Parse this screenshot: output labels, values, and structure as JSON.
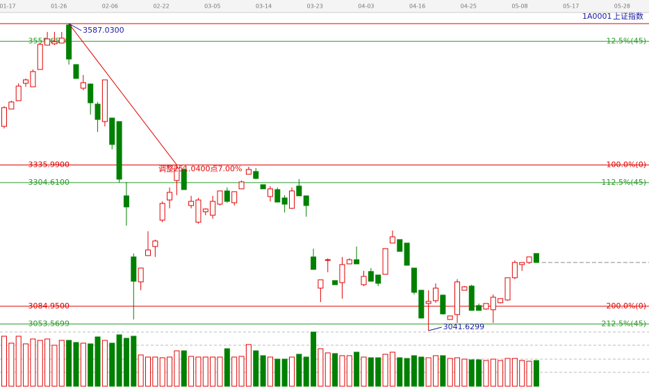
{
  "chart_data": {
    "type": "candlestick",
    "code": "1A0001",
    "name": "上证指数",
    "xticks": [
      "01-17",
      "01-26",
      "02-06",
      "02-22",
      "03-05",
      "03-14",
      "03-23",
      "04-03",
      "04-16",
      "04-25",
      "05-08",
      "05-17",
      "05-28"
    ],
    "ylim": [
      3041.6299,
      3587.03
    ],
    "up_color": "#e00000",
    "down_color": "#008000",
    "ohlc": [
      [
        3404.5,
        3440.3,
        3400.8,
        3437.8
      ],
      [
        3435.3,
        3450.1,
        3435.3,
        3447.7
      ],
      [
        3450.1,
        3481.0,
        3450.1,
        3476.0
      ],
      [
        3481.0,
        3489.6,
        3474.8,
        3487.1
      ],
      [
        3474.8,
        3505.6,
        3474.8,
        3501.9
      ],
      [
        3505.6,
        3552.5,
        3505.6,
        3550.1
      ],
      [
        3548.8,
        3572.3,
        3548.8,
        3559.9
      ],
      [
        3551.3,
        3572.3,
        3548.8,
        3555.0
      ],
      [
        3552.5,
        3572.3,
        3552.5,
        3561.2
      ],
      [
        3584.6,
        3587.03,
        3514.3,
        3524.1
      ],
      [
        3514.3,
        3514.3,
        3489.6,
        3489.6
      ],
      [
        3472.3,
        3495.8,
        3468.6,
        3482.2
      ],
      [
        3479.7,
        3481.0,
        3425.5,
        3446.4
      ],
      [
        3444.0,
        3447.7,
        3394.6,
        3416.8
      ],
      [
        3413.1,
        3487.1,
        3404.5,
        3487.1
      ],
      [
        3419.3,
        3419.3,
        3363.8,
        3372.4
      ],
      [
        3413.1,
        3413.1,
        3304.6,
        3310.7
      ],
      [
        3281.1,
        3305.8,
        3228.1,
        3261.4
      ],
      [
        3172.6,
        3178.7,
        3061.5,
        3129.4
      ],
      [
        3128.2,
        3152.8,
        3113.4,
        3152.8
      ],
      [
        3175.0,
        3218.2,
        3175.0,
        3184.9
      ],
      [
        3191.1,
        3203.4,
        3172.6,
        3200.9
      ],
      [
        3237.9,
        3271.3,
        3234.2,
        3267.6
      ],
      [
        3273.7,
        3295.9,
        3258.9,
        3287.3
      ],
      [
        3308.3,
        3335.4,
        3282.4,
        3330.5
      ],
      [
        3328.0,
        3332.9,
        3292.2,
        3292.2
      ],
      [
        3263.9,
        3281.1,
        3258.9,
        3271.3
      ],
      [
        3234.2,
        3277.4,
        3231.8,
        3273.7
      ],
      [
        3252.8,
        3258.9,
        3246.6,
        3257.7
      ],
      [
        3246.6,
        3281.1,
        3240.4,
        3271.3
      ],
      [
        3266.3,
        3289.8,
        3263.9,
        3289.8
      ],
      [
        3289.8,
        3295.9,
        3268.8,
        3271.3
      ],
      [
        3268.8,
        3288.5,
        3263.9,
        3288.5
      ],
      [
        3293.5,
        3308.3,
        3293.5,
        3305.8
      ],
      [
        3319.4,
        3332.9,
        3319.4,
        3328.0
      ],
      [
        3324.3,
        3330.5,
        3310.7,
        3312.0
      ],
      [
        3300.9,
        3300.9,
        3293.5,
        3293.5
      ],
      [
        3279.9,
        3298.4,
        3271.3,
        3293.5
      ],
      [
        3292.2,
        3295.9,
        3270.0,
        3270.0
      ],
      [
        3277.4,
        3282.4,
        3251.5,
        3266.3
      ],
      [
        3258.9,
        3295.9,
        3257.7,
        3289.8
      ],
      [
        3298.4,
        3310.7,
        3281.1,
        3281.1
      ],
      [
        3281.1,
        3281.1,
        3244.1,
        3263.9
      ],
      [
        3172.6,
        3187.4,
        3150.4,
        3150.4
      ],
      [
        3117.1,
        3131.9,
        3092.4,
        3131.9
      ],
      [
        3166.4,
        3170.1,
        3145.4,
        3167.6
      ],
      [
        3130.6,
        3130.6,
        3123.2,
        3123.2
      ],
      [
        3126.9,
        3172.6,
        3098.6,
        3159.0
      ],
      [
        3160.2,
        3170.1,
        3160.2,
        3167.6
      ],
      [
        3167.6,
        3191.1,
        3160.2,
        3160.2
      ],
      [
        3123.2,
        3147.9,
        3120.8,
        3138.0
      ],
      [
        3146.7,
        3152.8,
        3129.4,
        3129.4
      ],
      [
        3140.5,
        3140.5,
        3120.8,
        3125.7
      ],
      [
        3141.7,
        3187.4,
        3141.7,
        3187.4
      ],
      [
        3197.2,
        3219.4,
        3197.2,
        3208.3
      ],
      [
        3203.4,
        3203.4,
        3182.4,
        3182.4
      ],
      [
        3197.2,
        3197.2,
        3157.8,
        3157.8
      ],
      [
        3152.8,
        3152.8,
        3106.0,
        3109.7
      ],
      [
        3113.4,
        3113.4,
        3064.0,
        3064.0
      ],
      [
        3089.9,
        3113.4,
        3041.6299,
        3093.6
      ],
      [
        3094.9,
        3125.7,
        3091.2,
        3117.1
      ],
      [
        3104.7,
        3106.0,
        3070.2,
        3071.4
      ],
      [
        3061.5,
        3067.7,
        3061.5,
        3067.7
      ],
      [
        3070.2,
        3133.1,
        3055.4,
        3128.2
      ],
      [
        3113.4,
        3120.8,
        3113.4,
        3119.5
      ],
      [
        3120.8,
        3123.2,
        3077.6,
        3077.6
      ],
      [
        3086.2,
        3089.9,
        3077.6,
        3077.6
      ],
      [
        3080.0,
        3089.9,
        3078.8,
        3089.9
      ],
      [
        3078.8,
        3106.0,
        3055.4,
        3101.0
      ],
      [
        3091.2,
        3096.1,
        3089.9,
        3098.6
      ],
      [
        3096.1,
        3135.6,
        3094.9,
        3135.6
      ],
      [
        3135.6,
        3166.4,
        3133.1,
        3162.7
      ],
      [
        3159.0,
        3162.7,
        3147.9,
        3162.7
      ],
      [
        3162.7,
        3172.6,
        3160.2,
        3172.6
      ],
      [
        3178.7,
        3178.7,
        3162.7,
        3162.7
      ]
    ],
    "volume": [
      72,
      62,
      72,
      61,
      68,
      66,
      68,
      59,
      66,
      66,
      63,
      62,
      61,
      71,
      66,
      62,
      74,
      69,
      72,
      45,
      42,
      42,
      41,
      42,
      51,
      51,
      43,
      42,
      42,
      42,
      42,
      54,
      42,
      43,
      60,
      51,
      44,
      42,
      39,
      39,
      42,
      46,
      42,
      78,
      54,
      48,
      47,
      44,
      44,
      49,
      42,
      41,
      41,
      46,
      49,
      41,
      40,
      44,
      42,
      41,
      44,
      44,
      40,
      41,
      39,
      38,
      38,
      37,
      39,
      37,
      40,
      40,
      37,
      36,
      37
    ],
    "top_line": {
      "value": 3587.03,
      "color": "#e00000"
    },
    "levels": [
      {
        "value": 3555.65,
        "label": "3555.6500",
        "ratio": "12.5%(45)",
        "color": "#2a9a2a"
      },
      {
        "value": 3335.99,
        "label": "3335.9900",
        "ratio": "100.0%(0)",
        "color": "#e00000"
      },
      {
        "value": 3304.61,
        "label": "3304.6100",
        "ratio": "112.5%(45)",
        "color": "#2a9a2a"
      },
      {
        "value": 3084.95,
        "label": "3084.9500",
        "ratio": "200.0%(0)",
        "color": "#e00000"
      },
      {
        "value": 3053.5699,
        "label": "3053.5699",
        "ratio": "212.5%(45)",
        "color": "#2a9a2a"
      }
    ],
    "high": {
      "value": 3587.03,
      "label": "3587.0300"
    },
    "low": 3041.6299,
    "adjustment": "调整251.0400点7.00%"
  }
}
